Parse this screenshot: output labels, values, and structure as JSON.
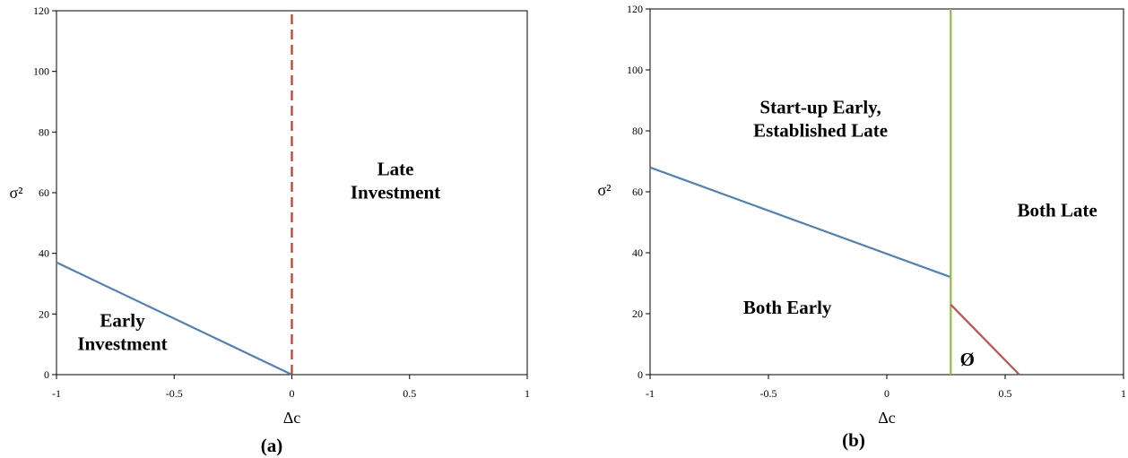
{
  "chart_data": [
    {
      "type": "line",
      "panel_label": "(a)",
      "xlabel": "Δc",
      "ylabel": "σ²",
      "xlim": [
        -1,
        1
      ],
      "ylim": [
        0,
        120
      ],
      "x_ticks": [
        "-1",
        "-0.5",
        "0",
        "0.5",
        "1"
      ],
      "y_ticks": [
        "0",
        "20",
        "40",
        "60",
        "80",
        "100",
        "120"
      ],
      "series": [
        {
          "points": [
            [
              -1,
              37
            ],
            [
              0,
              0
            ]
          ],
          "color": "#4f81bd",
          "style": "solid"
        },
        {
          "points": [
            [
              0,
              0
            ],
            [
              0,
              120
            ]
          ],
          "color": "#c0392b",
          "style": "dashed"
        }
      ],
      "annotations": [
        {
          "lines": [
            "Early",
            "Investment"
          ],
          "x": -0.72,
          "y": 14
        },
        {
          "lines": [
            "Late",
            "Investment"
          ],
          "x": 0.44,
          "y": 64
        }
      ]
    },
    {
      "type": "line",
      "panel_label": "(b)",
      "xlabel": "Δc",
      "ylabel": "σ²",
      "xlim": [
        -1,
        1
      ],
      "ylim": [
        0,
        120
      ],
      "x_ticks": [
        "-1",
        "-0.5",
        "0",
        "0.5",
        "1"
      ],
      "y_ticks": [
        "0",
        "20",
        "40",
        "60",
        "80",
        "100",
        "120"
      ],
      "series": [
        {
          "points": [
            [
              -1,
              68
            ],
            [
              0.27,
              32
            ]
          ],
          "color": "#4f81bd",
          "style": "solid"
        },
        {
          "points": [
            [
              0.27,
              0
            ],
            [
              0.27,
              120
            ]
          ],
          "color": "#8fbc45",
          "style": "solid"
        },
        {
          "points": [
            [
              0.27,
              23
            ],
            [
              0.56,
              0
            ]
          ],
          "color": "#c0504d",
          "style": "solid"
        }
      ],
      "annotations": [
        {
          "lines": [
            "Start-up Early,",
            "Established Late"
          ],
          "x": -0.28,
          "y": 84
        },
        {
          "lines": [
            "Both Late"
          ],
          "x": 0.72,
          "y": 54
        },
        {
          "lines": [
            "Both Early"
          ],
          "x": -0.42,
          "y": 22
        },
        {
          "lines": [
            "Ø"
          ],
          "x": 0.34,
          "y": 5
        }
      ]
    }
  ]
}
